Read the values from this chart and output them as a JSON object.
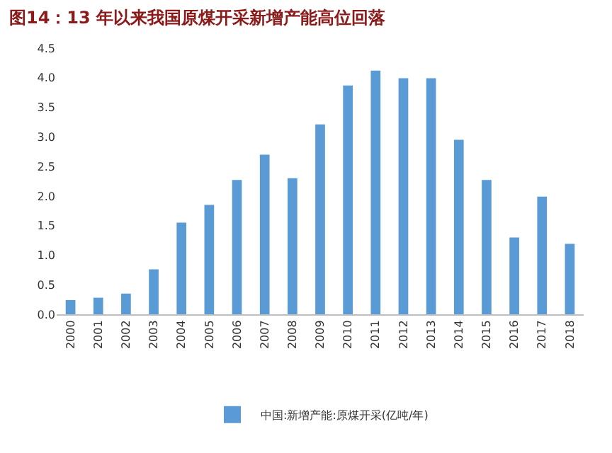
{
  "chart_data": {
    "type": "bar",
    "title": "图14：13 年以来我国原煤开采新增产能高位回落",
    "categories": [
      "2000",
      "2001",
      "2002",
      "2003",
      "2004",
      "2005",
      "2006",
      "2007",
      "2008",
      "2009",
      "2010",
      "2011",
      "2012",
      "2013",
      "2014",
      "2015",
      "2016",
      "2017",
      "2018"
    ],
    "series": [
      {
        "name": "中国:新增产能:原煤开采(亿吨/年)",
        "color": "#5b9bd5",
        "values": [
          0.24,
          0.28,
          0.35,
          0.76,
          1.55,
          1.85,
          2.27,
          2.7,
          2.3,
          3.21,
          3.87,
          4.12,
          3.99,
          3.99,
          2.95,
          2.27,
          1.3,
          1.99,
          1.19
        ]
      }
    ],
    "ylim": [
      0,
      4.5
    ],
    "yticks": [
      {
        "value": 0,
        "label": "0.0"
      },
      {
        "value": 0.5,
        "label": "0.5"
      },
      {
        "value": 1,
        "label": "1.0"
      },
      {
        "value": 1.5,
        "label": "1.5"
      },
      {
        "value": 2,
        "label": "2.0"
      },
      {
        "value": 2.5,
        "label": "2.5"
      },
      {
        "value": 3,
        "label": "3.0"
      },
      {
        "value": 3.5,
        "label": "3.5"
      },
      {
        "value": 4,
        "label": "4.0"
      },
      {
        "value": 4.5,
        "label": "4.5"
      }
    ],
    "grid": false,
    "legend": "bottom"
  }
}
